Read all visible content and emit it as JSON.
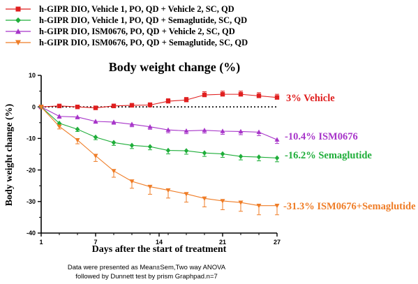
{
  "colors": {
    "vehicle": "#e01f1f",
    "semaglutide": "#1fae3a",
    "ism0676": "#a734c9",
    "combo": "#ef7d27"
  },
  "legend": [
    {
      "label": "h-GIPR DIO, Vehicle 1, PO, QD + Vehicle 2, SC, QD",
      "color": "#e01f1f",
      "marker": "square"
    },
    {
      "label": "h-GIPR DIO, Vehicle 1, PO, QD + Semaglutide, SC, QD",
      "color": "#1fae3a",
      "marker": "diamond"
    },
    {
      "label": "h-GIPR DIO, ISM0676, PO, QD + Vehicle 2, SC, QD",
      "color": "#a734c9",
      "marker": "triangle-up"
    },
    {
      "label": "h-GIPR DIO, ISM0676, PO, QD + Semaglutide, SC, QD",
      "color": "#ef7d27",
      "marker": "triangle-down"
    }
  ],
  "annotations": {
    "vehicle": "3% Vehicle",
    "ism0676": "-10.4%  ISM0676",
    "semaglutide": "-16.2% Semaglutide",
    "combo": "-31.3% ISM0676+Semaglutide"
  },
  "footnote": {
    "line1": "Data were presented as Mean±Sem,Two way ANOVA",
    "line2": "followed by Dunnett test by prism Graphpad.n=7"
  },
  "chart_data": {
    "type": "line",
    "title": "Body weight change (%)",
    "xlabel": "Days after the start of treatment",
    "ylabel": "Body weight change (%)",
    "xlim": [
      1,
      27
    ],
    "ylim": [
      -40,
      10
    ],
    "x_ticks": [
      1,
      7,
      14,
      21,
      27
    ],
    "y_ticks": [
      10,
      0,
      -10,
      -20,
      -30,
      -40
    ],
    "reference_line_y": 0,
    "x": [
      1,
      3,
      5,
      7,
      9,
      11,
      13,
      15,
      17,
      19,
      21,
      23,
      25,
      27
    ],
    "series": [
      {
        "name": "h-GIPR DIO, Vehicle 1, PO, QD + Vehicle 2, SC, QD",
        "color": "#e01f1f",
        "marker": "square",
        "values": [
          0,
          0.3,
          0,
          -0.3,
          0.3,
          0.5,
          0.6,
          1.8,
          2.2,
          3.8,
          4.0,
          4.0,
          3.5,
          3.0
        ],
        "errors": [
          0,
          0.4,
          0.4,
          0.4,
          0.6,
          0.6,
          0.7,
          0.8,
          0.8,
          1.0,
          1.0,
          1.0,
          1.0,
          1.0
        ]
      },
      {
        "name": "h-GIPR DIO, ISM0676, PO, QD + Vehicle 2, SC, QD",
        "color": "#a734c9",
        "marker": "triangle-up",
        "values": [
          0,
          -3.0,
          -3.2,
          -4.6,
          -4.8,
          -5.5,
          -6.3,
          -7.3,
          -7.6,
          -7.4,
          -7.7,
          -7.8,
          -8.0,
          -10.4
        ],
        "errors": [
          0,
          0.6,
          0.6,
          0.6,
          0.7,
          0.8,
          0.8,
          0.9,
          0.9,
          0.9,
          1.0,
          1.0,
          1.1,
          1.2
        ]
      },
      {
        "name": "h-GIPR DIO, Vehicle 1, PO, QD + Semaglutide, SC, QD",
        "color": "#1fae3a",
        "marker": "diamond",
        "values": [
          0,
          -5.2,
          -7.1,
          -9.6,
          -11.3,
          -12.2,
          -12.6,
          -13.8,
          -13.9,
          -14.6,
          -14.9,
          -15.7,
          -15.9,
          -16.2
        ],
        "errors": [
          0,
          0.7,
          0.7,
          0.8,
          0.9,
          1.0,
          1.0,
          1.1,
          1.1,
          1.1,
          1.1,
          1.1,
          1.2,
          1.2
        ]
      },
      {
        "name": "h-GIPR DIO, ISM0676, PO, QD + Semaglutide, SC, QD",
        "color": "#ef7d27",
        "marker": "triangle-down",
        "values": [
          0,
          -6.2,
          -10.5,
          -15.5,
          -20.3,
          -23.6,
          -25.3,
          -26.4,
          -27.6,
          -29.0,
          -29.8,
          -30.3,
          -31.3,
          -31.3
        ],
        "errors": [
          0,
          0.8,
          1.2,
          1.8,
          2.0,
          2.2,
          2.4,
          2.5,
          2.6,
          2.7,
          2.8,
          2.8,
          2.9,
          2.9
        ]
      }
    ]
  }
}
